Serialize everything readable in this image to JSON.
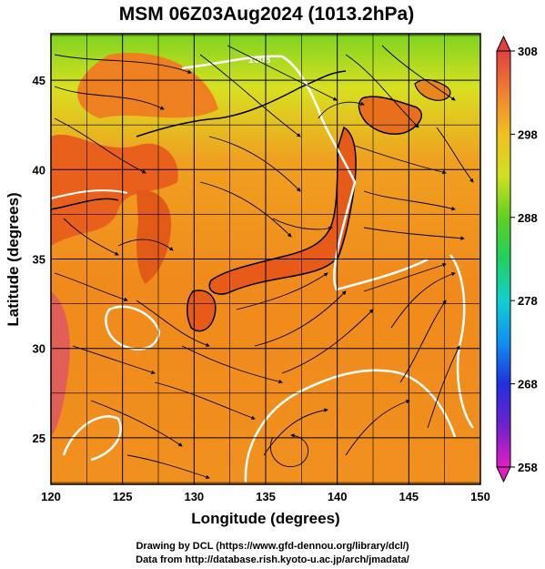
{
  "title": "MSM 06Z03Aug2024 (1013.2hPa)",
  "xlabel": "Longitude (degrees)",
  "ylabel": "Latitude  (degrees)",
  "x_ticks": [
    120,
    125,
    130,
    135,
    140,
    145,
    150
  ],
  "y_ticks": [
    25,
    30,
    35,
    40,
    45
  ],
  "xlim": [
    120,
    150
  ],
  "ylim": [
    22.4,
    47.6
  ],
  "colorbar": {
    "min": 258,
    "max": 308,
    "ticks": [
      258,
      268,
      278,
      288,
      298,
      308
    ]
  },
  "contour_label": "1008",
  "credits": {
    "line1": "Drawing by DCL (https://www.gfd-dennou.org/library/dcl/)",
    "line2": "Data from http://database.rish.kyoto-u.ac.jp/arch/jmadata/"
  }
}
